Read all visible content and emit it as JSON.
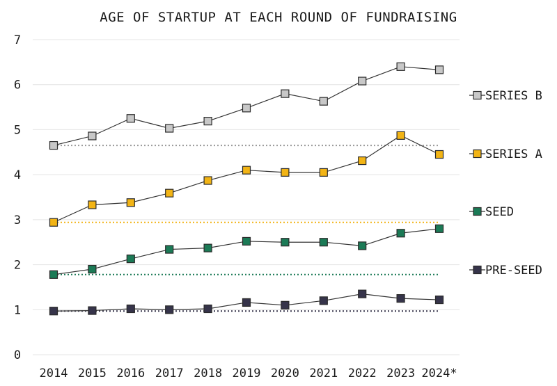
{
  "chart_data": {
    "type": "line",
    "title": "AGE OF STARTUP AT EACH ROUND OF FUNDRAISING",
    "xlabel": "",
    "ylabel": "",
    "categories": [
      "2014",
      "2015",
      "2016",
      "2017",
      "2018",
      "2019",
      "2020",
      "2021",
      "2022",
      "2023",
      "2024*"
    ],
    "ylim": [
      0,
      7
    ],
    "yticks": [
      0,
      1,
      2,
      3,
      4,
      5,
      6,
      7
    ],
    "grid": "horizontal",
    "legend": "right, inline beside series",
    "series": [
      {
        "name": "SERIES B",
        "color": "#c8c8c8",
        "baseline_color": "#999999",
        "values": [
          4.65,
          4.86,
          5.25,
          5.03,
          5.19,
          5.48,
          5.8,
          5.63,
          6.08,
          6.4,
          6.33
        ]
      },
      {
        "name": "SERIES A",
        "color": "#f2b415",
        "baseline_color": "#f2b415",
        "values": [
          2.94,
          3.33,
          3.38,
          3.59,
          3.87,
          4.1,
          4.05,
          4.05,
          4.31,
          4.87,
          4.45
        ]
      },
      {
        "name": "SEED",
        "color": "#1b7a56",
        "baseline_color": "#1b7a56",
        "values": [
          1.78,
          1.9,
          2.13,
          2.34,
          2.37,
          2.52,
          2.5,
          2.5,
          2.42,
          2.7,
          2.8
        ]
      },
      {
        "name": "PRE-SEED",
        "color": "#36344a",
        "baseline_color": "#36344a",
        "values": [
          0.97,
          0.98,
          1.02,
          1.0,
          1.02,
          1.16,
          1.1,
          1.2,
          1.35,
          1.25,
          1.22
        ]
      }
    ]
  }
}
